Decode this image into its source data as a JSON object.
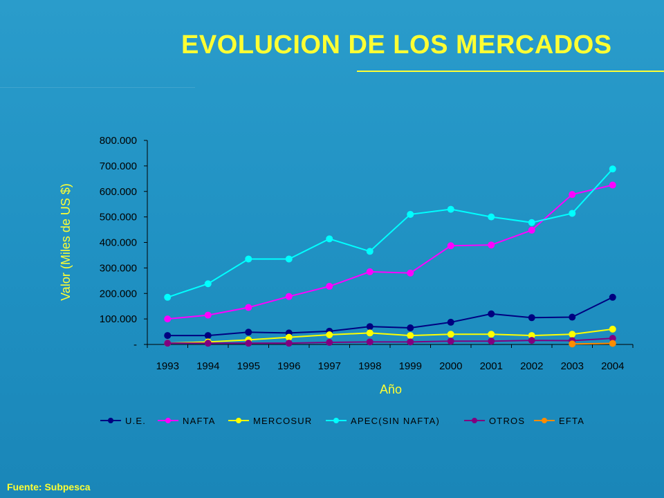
{
  "slide": {
    "title": "EVOLUCION DE LOS MERCADOS",
    "source": "Fuente: Subpesca"
  },
  "colors": {
    "title": "#ffff33",
    "axis_text": "#ffff33",
    "tick_text": "#000000",
    "background": "#1f90c2"
  },
  "chart_data": {
    "type": "line",
    "title": "",
    "xlabel": "Año",
    "ylabel": "Valor (Miles de US $)",
    "categories": [
      "1993",
      "1994",
      "1995",
      "1996",
      "1997",
      "1998",
      "1999",
      "2000",
      "2001",
      "2002",
      "2003",
      "2004"
    ],
    "ylim": [
      0,
      800000
    ],
    "yticks": [
      0,
      100000,
      200000,
      300000,
      400000,
      500000,
      600000,
      700000,
      800000
    ],
    "ytick_labels": [
      "-",
      "100.000",
      "200.000",
      "300.000",
      "400.000",
      "500.000",
      "600.000",
      "700.000",
      "800.000"
    ],
    "grid": false,
    "legend_position": "bottom",
    "series": [
      {
        "name": "U.E.",
        "color": "#000080",
        "values": [
          35000,
          35000,
          48000,
          45000,
          52000,
          70000,
          65000,
          87000,
          120000,
          105000,
          107000,
          185000
        ]
      },
      {
        "name": "NAFTA",
        "color": "#ff00ff",
        "values": [
          100000,
          115000,
          145000,
          188000,
          228000,
          285000,
          280000,
          387000,
          390000,
          448000,
          588000,
          625000
        ]
      },
      {
        "name": "MERCOSUR",
        "color": "#ffff00",
        "values": [
          5000,
          10000,
          18000,
          28000,
          38000,
          45000,
          35000,
          40000,
          40000,
          35000,
          40000,
          60000
        ]
      },
      {
        "name": "APEC(SIN NAFTA)",
        "color": "#00ffff",
        "values": [
          185000,
          238000,
          335000,
          335000,
          414000,
          365000,
          510000,
          530000,
          500000,
          478000,
          514000,
          688000
        ]
      },
      {
        "name": "OTROS",
        "color": "#800080",
        "values": [
          5000,
          5000,
          5000,
          5000,
          8000,
          10000,
          10000,
          13000,
          13000,
          16000,
          15000,
          24000
        ]
      },
      {
        "name": "EFTA",
        "color": "#ff8c00",
        "values": [
          null,
          null,
          null,
          null,
          null,
          null,
          null,
          null,
          null,
          null,
          2000,
          4000
        ]
      }
    ]
  }
}
